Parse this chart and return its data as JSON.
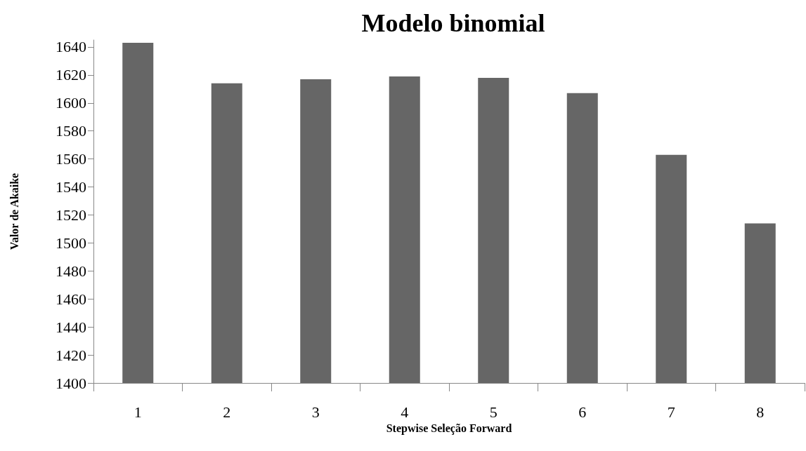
{
  "chart_data": {
    "type": "bar",
    "title": "Modelo binomial",
    "xlabel": "Stepwise Seleção Forward",
    "ylabel": "Valor de Akaike",
    "categories": [
      "1",
      "2",
      "3",
      "4",
      "5",
      "6",
      "7",
      "8"
    ],
    "values": [
      1643,
      1614,
      1617,
      1619,
      1618,
      1607,
      1563,
      1514
    ],
    "color": "#666666",
    "ylim": [
      1400,
      1645
    ],
    "yticks": [
      1400,
      1420,
      1440,
      1460,
      1480,
      1500,
      1520,
      1540,
      1560,
      1580,
      1600,
      1620,
      1640
    ],
    "grid": false
  }
}
